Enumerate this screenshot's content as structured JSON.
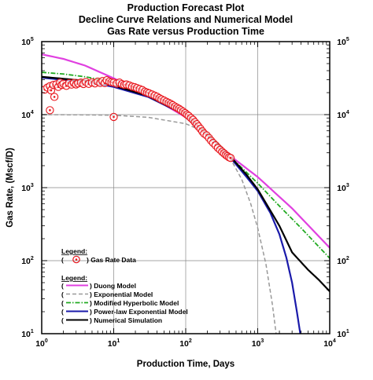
{
  "chart_data": {
    "type": "line",
    "title": [
      "Production Forecast Plot",
      "Decline Curve Relations and Numerical Model",
      "Gas Rate versus Production Time"
    ],
    "xlabel": "Production Time, Days",
    "ylabel": "Gas Rate, (Mscf/D)",
    "xscale": "log",
    "yscale": "log",
    "xlim": [
      1,
      10000
    ],
    "ylim": [
      10,
      100000
    ],
    "grid": true,
    "x_ticks": [
      {
        "value": 1,
        "base": "10",
        "exp": "0"
      },
      {
        "value": 10,
        "base": "10",
        "exp": "1"
      },
      {
        "value": 100,
        "base": "10",
        "exp": "2"
      },
      {
        "value": 1000,
        "base": "10",
        "exp": "3"
      },
      {
        "value": 10000,
        "base": "10",
        "exp": "4"
      }
    ],
    "y_ticks": [
      {
        "value": 10,
        "base": "10",
        "exp": "1"
      },
      {
        "value": 100,
        "base": "10",
        "exp": "2"
      },
      {
        "value": 1000,
        "base": "10",
        "exp": "3"
      },
      {
        "value": 10000,
        "base": "10",
        "exp": "4"
      },
      {
        "value": 100000,
        "base": "10",
        "exp": "5"
      }
    ],
    "legend_data": {
      "title": "Legend:",
      "open_paren": "(",
      "entries": [
        {
          "label": ") Gas Rate Data",
          "color": "#e8141b"
        }
      ]
    },
    "legend_models": {
      "title": "Legend:",
      "open_paren": "(",
      "entries": [
        {
          "label": ") Duong Model",
          "color": "#e040e0",
          "dash": "solid"
        },
        {
          "label": ") Exponential Model",
          "color": "#999999",
          "dash": "dashed"
        },
        {
          "label": ") Modified Hyperbolic Model",
          "color": "#22aa22",
          "dash": "dashdot"
        },
        {
          "label": ") Power-law Exponential Model",
          "color": "#1a1aaa",
          "dash": "solid"
        },
        {
          "label": ") Numerical Simulation",
          "color": "#000000",
          "dash": "solid"
        }
      ]
    },
    "scatter": {
      "name": "Gas Rate Data",
      "color": "#e8141b",
      "points": [
        [
          1.1,
          22000
        ],
        [
          1.2,
          23500
        ],
        [
          1.3,
          24500
        ],
        [
          1.35,
          21500
        ],
        [
          1.45,
          25500
        ],
        [
          1.5,
          17500
        ],
        [
          1.6,
          26000
        ],
        [
          1.7,
          24000
        ],
        [
          1.8,
          27500
        ],
        [
          1.9,
          25500
        ],
        [
          2.0,
          26500
        ],
        [
          2.2,
          24800
        ],
        [
          2.4,
          27000
        ],
        [
          2.6,
          25800
        ],
        [
          2.8,
          27200
        ],
        [
          3.0,
          25900
        ],
        [
          3.2,
          26800
        ],
        [
          3.5,
          27500
        ],
        [
          3.8,
          26300
        ],
        [
          4.1,
          28000
        ],
        [
          4.5,
          26400
        ],
        [
          5.0,
          27600
        ],
        [
          5.5,
          26800
        ],
        [
          6.0,
          28400
        ],
        [
          6.5,
          27200
        ],
        [
          7.0,
          28800
        ],
        [
          7.5,
          27100
        ],
        [
          8.0,
          29600
        ],
        [
          8.7,
          28400
        ],
        [
          9.3,
          27700
        ],
        [
          10,
          27400
        ],
        [
          11,
          26600
        ],
        [
          12,
          27500
        ],
        [
          13,
          26200
        ],
        [
          14,
          25600
        ],
        [
          15,
          25900
        ],
        [
          16.5,
          25100
        ],
        [
          18,
          24200
        ],
        [
          19.5,
          23800
        ],
        [
          21,
          23100
        ],
        [
          23,
          22400
        ],
        [
          25,
          21700
        ],
        [
          27,
          20700
        ],
        [
          29,
          20100
        ],
        [
          31,
          19600
        ],
        [
          34,
          18900
        ],
        [
          37,
          18200
        ],
        [
          40,
          17600
        ],
        [
          43,
          16800
        ],
        [
          46,
          16200
        ],
        [
          50,
          15600
        ],
        [
          54,
          15000
        ],
        [
          58,
          14500
        ],
        [
          62,
          14000
        ],
        [
          66,
          13500
        ],
        [
          71,
          12900
        ],
        [
          76,
          12400
        ],
        [
          81,
          12000
        ],
        [
          86,
          11500
        ],
        [
          92,
          11000
        ],
        [
          98,
          10500
        ],
        [
          104,
          10000
        ],
        [
          110,
          9600
        ],
        [
          118,
          9000
        ],
        [
          126,
          8500
        ],
        [
          134,
          7900
        ],
        [
          142,
          7400
        ],
        [
          150,
          6900
        ],
        [
          160,
          6400
        ],
        [
          170,
          5900
        ],
        [
          180,
          5500
        ],
        [
          195,
          5200
        ],
        [
          210,
          4800
        ],
        [
          225,
          4400
        ],
        [
          240,
          4100
        ],
        [
          260,
          3800
        ],
        [
          280,
          3500
        ],
        [
          300,
          3300
        ],
        [
          320,
          3100
        ],
        [
          340,
          2950
        ],
        [
          360,
          2800
        ],
        [
          380,
          2700
        ],
        [
          400,
          2600
        ],
        [
          420,
          2550
        ],
        [
          1.3,
          11500
        ],
        [
          10,
          9300
        ]
      ]
    },
    "series": [
      {
        "name": "Duong Model",
        "color": "#e040e0",
        "dash": "solid",
        "width": 2.2,
        "x": [
          1,
          2,
          4,
          10,
          30,
          100,
          300,
          400,
          1000,
          3000,
          10000
        ],
        "y": [
          67000,
          58000,
          47000,
          31500,
          18500,
          9200,
          3700,
          2800,
          1400,
          520,
          150
        ]
      },
      {
        "name": "Exponential Model",
        "color": "#999999",
        "dash": "dashed",
        "width": 1.5,
        "x": [
          1,
          5,
          10,
          30,
          100,
          200,
          300,
          400,
          600,
          800,
          1000,
          1300,
          1600,
          1800
        ],
        "y": [
          10000,
          9900,
          9800,
          9200,
          7500,
          5600,
          3800,
          2700,
          1300,
          600,
          280,
          90,
          25,
          10
        ]
      },
      {
        "name": "Modified Hyperbolic Model",
        "color": "#22aa22",
        "dash": "dashdot",
        "width": 1.8,
        "x": [
          1,
          2,
          4,
          10,
          30,
          100,
          300,
          400,
          1000,
          2000,
          4000,
          10000
        ],
        "y": [
          38000,
          36000,
          33000,
          28000,
          19500,
          10500,
          3800,
          2750,
          1150,
          560,
          280,
          108
        ]
      },
      {
        "name": "Power-law Exponential Model",
        "color": "#1a1aaa",
        "dash": "solid",
        "width": 2.2,
        "x": [
          1,
          2,
          4,
          10,
          30,
          100,
          300,
          400,
          700,
          1000,
          1500,
          2000,
          2500,
          3000,
          3500,
          3900
        ],
        "y": [
          32000,
          30000,
          28000,
          24000,
          17500,
          9800,
          3650,
          2700,
          1400,
          900,
          450,
          230,
          110,
          50,
          20,
          10
        ]
      },
      {
        "name": "Numerical Simulation",
        "color": "#000000",
        "dash": "solid",
        "width": 2.2,
        "x": [
          1,
          2,
          5,
          10,
          30,
          100,
          300,
          400,
          700,
          1000,
          2000,
          3000,
          5000,
          7000,
          10000
        ],
        "y": [
          33000,
          31000,
          28500,
          25000,
          18000,
          9800,
          3700,
          2800,
          1500,
          950,
          300,
          130,
          75,
          55,
          38
        ]
      }
    ]
  }
}
